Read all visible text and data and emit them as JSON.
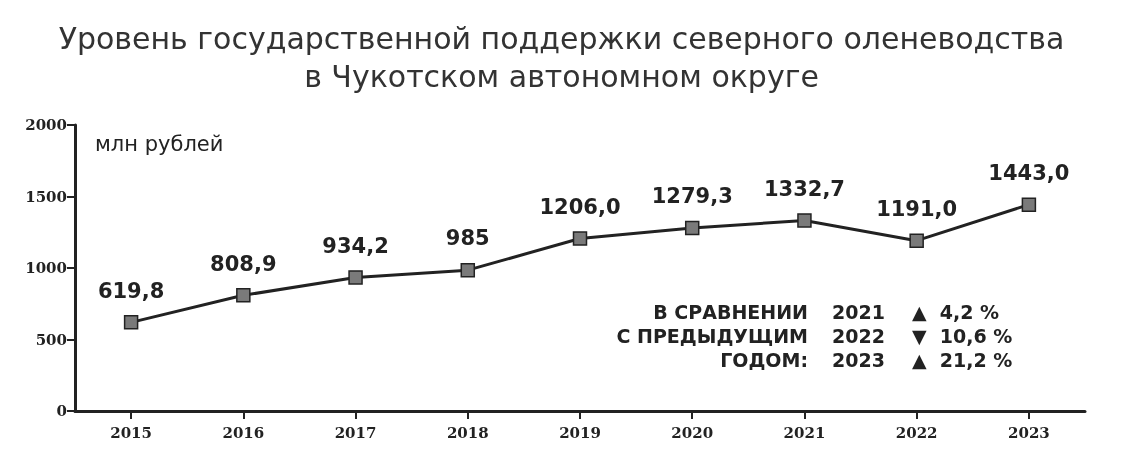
{
  "chart_data": {
    "type": "line",
    "title": "Уровень государственной поддержки северного оленеводства\nв Чукотском автономном округе",
    "ylabel": "млн рублей",
    "categories": [
      "2015",
      "2016",
      "2017",
      "2018",
      "2019",
      "2020",
      "2021",
      "2022",
      "2023"
    ],
    "series": [
      {
        "color": "#222222",
        "values": [
          619.8,
          808.9,
          934.2,
          985,
          1206.0,
          1279.3,
          1332.7,
          1191.0,
          1443.0
        ],
        "value_labels": [
          "619,8",
          "808,9",
          "934,2",
          "985",
          "1206,0",
          "1279,3",
          "1332,7",
          "1191,0",
          "1443,0"
        ]
      }
    ],
    "ylim": [
      0,
      2000
    ],
    "yticks": [
      0,
      500,
      1000,
      1500,
      2000
    ],
    "grid": false,
    "marker": "square",
    "line_style": "solid",
    "annotations": [
      "В СРАВНЕНИИ",
      "С ПРЕДЫДУЩИМ",
      "ГОДОМ:",
      "2021",
      "2022",
      "2023",
      "▲  4,2 %",
      "▼  10,6 %",
      "▲  21,2 %"
    ]
  }
}
